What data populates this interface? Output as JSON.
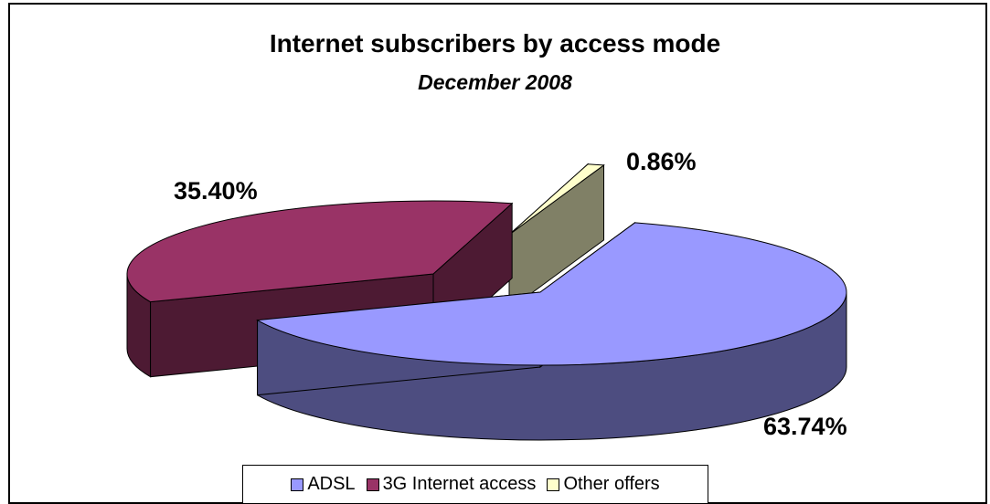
{
  "chart_data": {
    "type": "pie",
    "title": "Internet subscribers by access mode",
    "subtitle": "December 2008",
    "categories": [
      "ADSL",
      "3G Internet access",
      "Other offers"
    ],
    "values": [
      63.74,
      35.4,
      0.86
    ],
    "value_labels": [
      "63.74%",
      "35.40%",
      "0.86%"
    ],
    "colors": {
      "ADSL": "#9999ff",
      "3G Internet access": "#993366",
      "Other offers": "#ffffcc"
    },
    "side_colors": {
      "ADSL": "#4d4d80",
      "3G Internet access": "#4d1a33",
      "Other offers": "#808066"
    },
    "style": "3d-exploded",
    "legend_position": "bottom"
  }
}
